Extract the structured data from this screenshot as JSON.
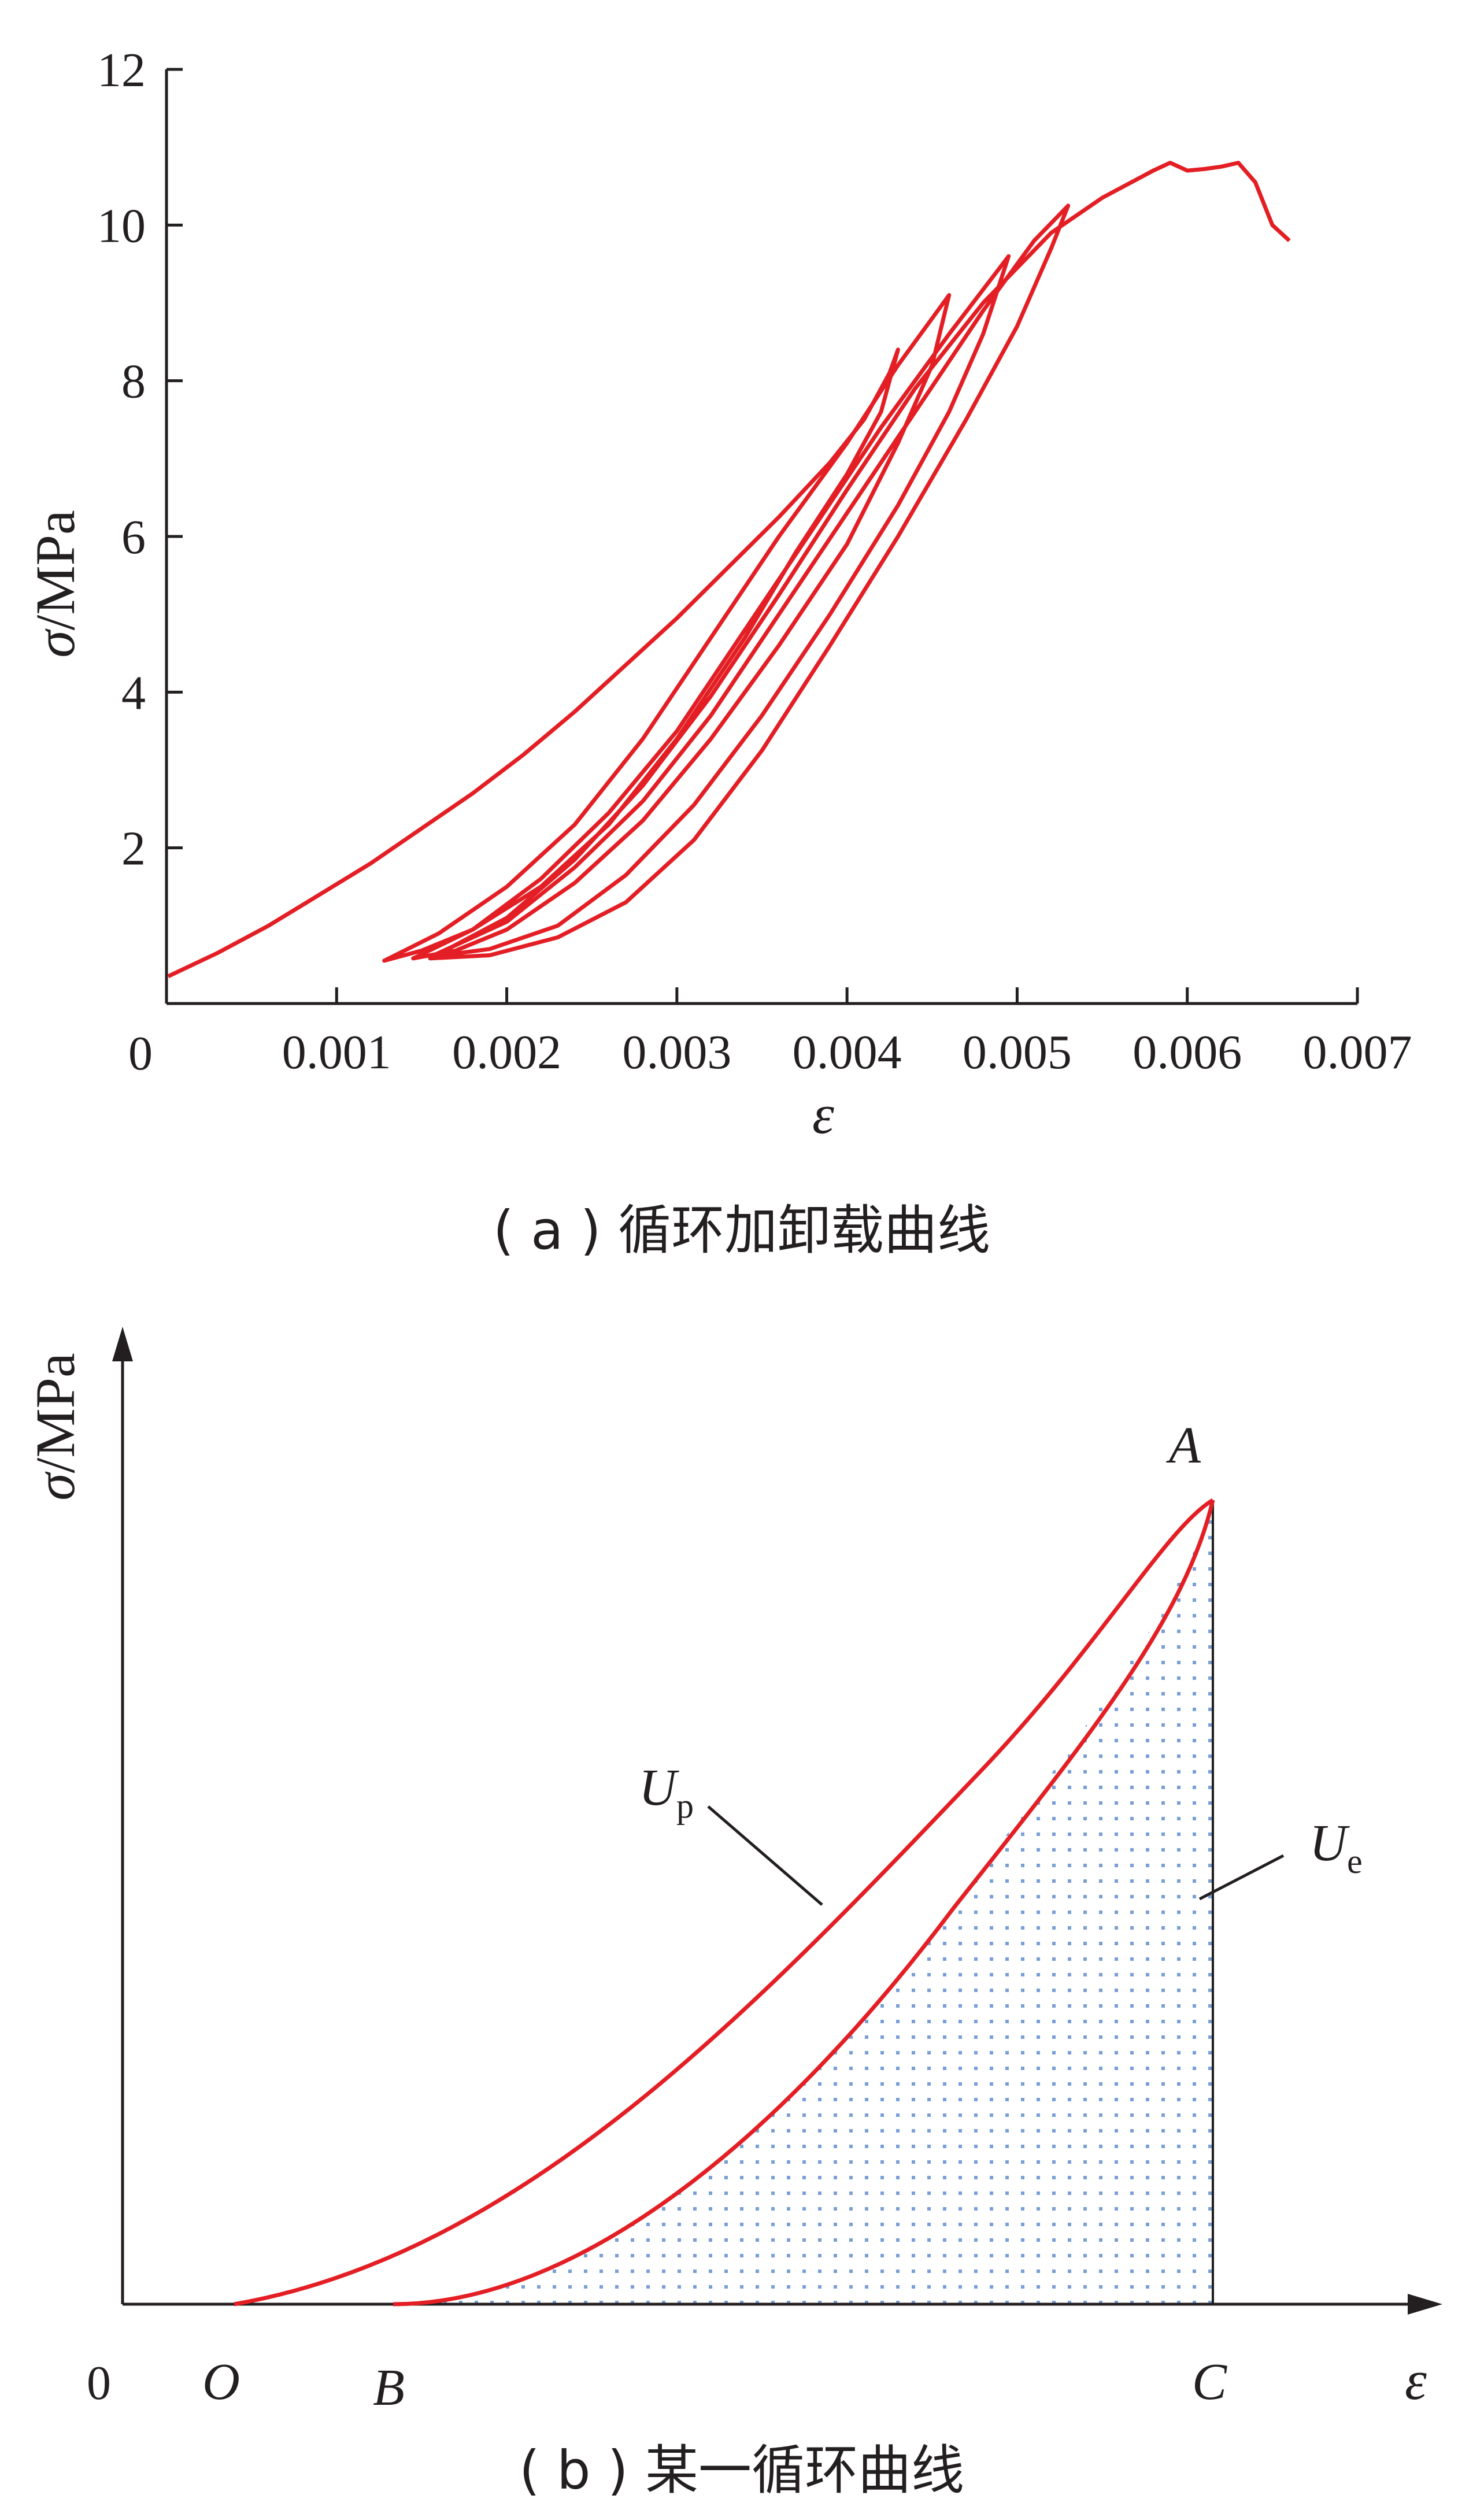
{
  "chart_data": [
    {
      "type": "line",
      "panel": "a",
      "caption": "( a ) 循环加卸载曲线",
      "xlabel": "ε",
      "ylabel_symbol": "σ",
      "ylabel_unit": "/MPa",
      "origin_label": "0",
      "xlim": [
        0,
        0.007
      ],
      "ylim": [
        0,
        12
      ],
      "x_ticks": [
        0.001,
        0.002,
        0.003,
        0.004,
        0.005,
        0.006,
        0.007
      ],
      "x_tick_labels": [
        "0.001",
        "0.002",
        "0.003",
        "0.004",
        "0.005",
        "0.006",
        "0.007"
      ],
      "y_ticks": [
        2,
        4,
        6,
        8,
        10,
        12
      ],
      "y_tick_labels": [
        "2",
        "4",
        "6",
        "8",
        "10",
        "12"
      ],
      "line_color": "#e31e24",
      "series": [
        {
          "points": [
            [
              1e-05,
              0.35
            ],
            [
              0.0003,
              0.65
            ],
            [
              0.0006,
              1.0
            ],
            [
              0.0009,
              1.4
            ],
            [
              0.0012,
              1.8
            ],
            [
              0.0015,
              2.25
            ],
            [
              0.0018,
              2.7
            ],
            [
              0.0021,
              3.2
            ],
            [
              0.0024,
              3.75
            ],
            [
              0.0027,
              4.35
            ],
            [
              0.003,
              4.95
            ],
            [
              0.0033,
              5.6
            ],
            [
              0.0036,
              6.25
            ],
            [
              0.0039,
              6.95
            ],
            [
              0.0041,
              7.5
            ],
            [
              0.00425,
              8.1
            ],
            [
              0.0043,
              8.4
            ],
            [
              0.0042,
              7.6
            ],
            [
              0.004,
              6.8
            ],
            [
              0.0037,
              5.8
            ],
            [
              0.0034,
              4.7
            ],
            [
              0.003,
              3.4
            ],
            [
              0.0026,
              2.3
            ],
            [
              0.0022,
              1.5
            ],
            [
              0.0018,
              0.95
            ],
            [
              0.0015,
              0.68
            ],
            [
              0.00128,
              0.55
            ],
            [
              0.0016,
              0.9
            ],
            [
              0.002,
              1.5
            ],
            [
              0.0024,
              2.3
            ],
            [
              0.0028,
              3.4
            ],
            [
              0.0032,
              4.7
            ],
            [
              0.0036,
              6.0
            ],
            [
              0.004,
              7.2
            ],
            [
              0.0043,
              8.2
            ],
            [
              0.0046,
              9.1
            ],
            [
              0.0045,
              8.2
            ],
            [
              0.0043,
              7.2
            ],
            [
              0.004,
              5.9
            ],
            [
              0.0036,
              4.6
            ],
            [
              0.0032,
              3.4
            ],
            [
              0.0028,
              2.35
            ],
            [
              0.0024,
              1.55
            ],
            [
              0.002,
              0.95
            ],
            [
              0.0017,
              0.68
            ],
            [
              0.00145,
              0.58
            ],
            [
              0.0018,
              0.95
            ],
            [
              0.0022,
              1.6
            ],
            [
              0.0026,
              2.45
            ],
            [
              0.003,
              3.5
            ],
            [
              0.0034,
              4.8
            ],
            [
              0.0038,
              6.1
            ],
            [
              0.0042,
              7.4
            ],
            [
              0.0046,
              8.6
            ],
            [
              0.00495,
              9.6
            ],
            [
              0.0048,
              8.6
            ],
            [
              0.0046,
              7.6
            ],
            [
              0.0043,
              6.4
            ],
            [
              0.0039,
              5.0
            ],
            [
              0.0035,
              3.7
            ],
            [
              0.0031,
              2.55
            ],
            [
              0.0027,
              1.65
            ],
            [
              0.0023,
              1.0
            ],
            [
              0.0019,
              0.7
            ],
            [
              0.00155,
              0.6
            ],
            [
              0.002,
              1.05
            ],
            [
              0.0024,
              1.75
            ],
            [
              0.0028,
              2.6
            ],
            [
              0.0032,
              3.7
            ],
            [
              0.0036,
              5.0
            ],
            [
              0.004,
              6.3
            ],
            [
              0.0044,
              7.6
            ],
            [
              0.0048,
              8.9
            ],
            [
              0.0051,
              9.8
            ],
            [
              0.0053,
              10.25
            ],
            [
              0.0052,
              9.7
            ],
            [
              0.005,
              8.7
            ],
            [
              0.0047,
              7.5
            ],
            [
              0.0043,
              6.0
            ],
            [
              0.0039,
              4.6
            ],
            [
              0.0035,
              3.25
            ],
            [
              0.0031,
              2.1
            ],
            [
              0.0027,
              1.3
            ],
            [
              0.0023,
              0.85
            ],
            [
              0.0019,
              0.62
            ],
            [
              0.00155,
              0.58
            ],
            [
              0.002,
              1.1
            ],
            [
              0.0024,
              1.85
            ],
            [
              0.0028,
              2.8
            ],
            [
              0.0032,
              3.95
            ],
            [
              0.0036,
              5.25
            ],
            [
              0.004,
              6.6
            ],
            [
              0.0044,
              7.9
            ],
            [
              0.0048,
              9.0
            ],
            [
              0.0052,
              9.9
            ],
            [
              0.0055,
              10.35
            ],
            [
              0.0058,
              10.7
            ],
            [
              0.0059,
              10.8
            ],
            [
              0.006,
              10.7
            ],
            [
              0.0061,
              10.72
            ],
            [
              0.0062,
              10.75
            ],
            [
              0.0063,
              10.8
            ],
            [
              0.0064,
              10.55
            ],
            [
              0.0065,
              10.0
            ],
            [
              0.0066,
              9.8
            ]
          ]
        }
      ]
    },
    {
      "type": "diagram",
      "panel": "b",
      "caption": "( b ) 某一循环曲线",
      "xlabel": "ε",
      "ylabel_symbol": "σ",
      "ylabel_unit": "/MPa",
      "origin_label": "0",
      "points": {
        "O": "O",
        "B": "B",
        "C": "C",
        "A": "A"
      },
      "labels": {
        "Up_main": "U",
        "Up_sub": "p",
        "Ue_main": "U",
        "Ue_sub": "e"
      },
      "line_color": "#e31e24",
      "fill_color": "#7a9fd6"
    }
  ]
}
